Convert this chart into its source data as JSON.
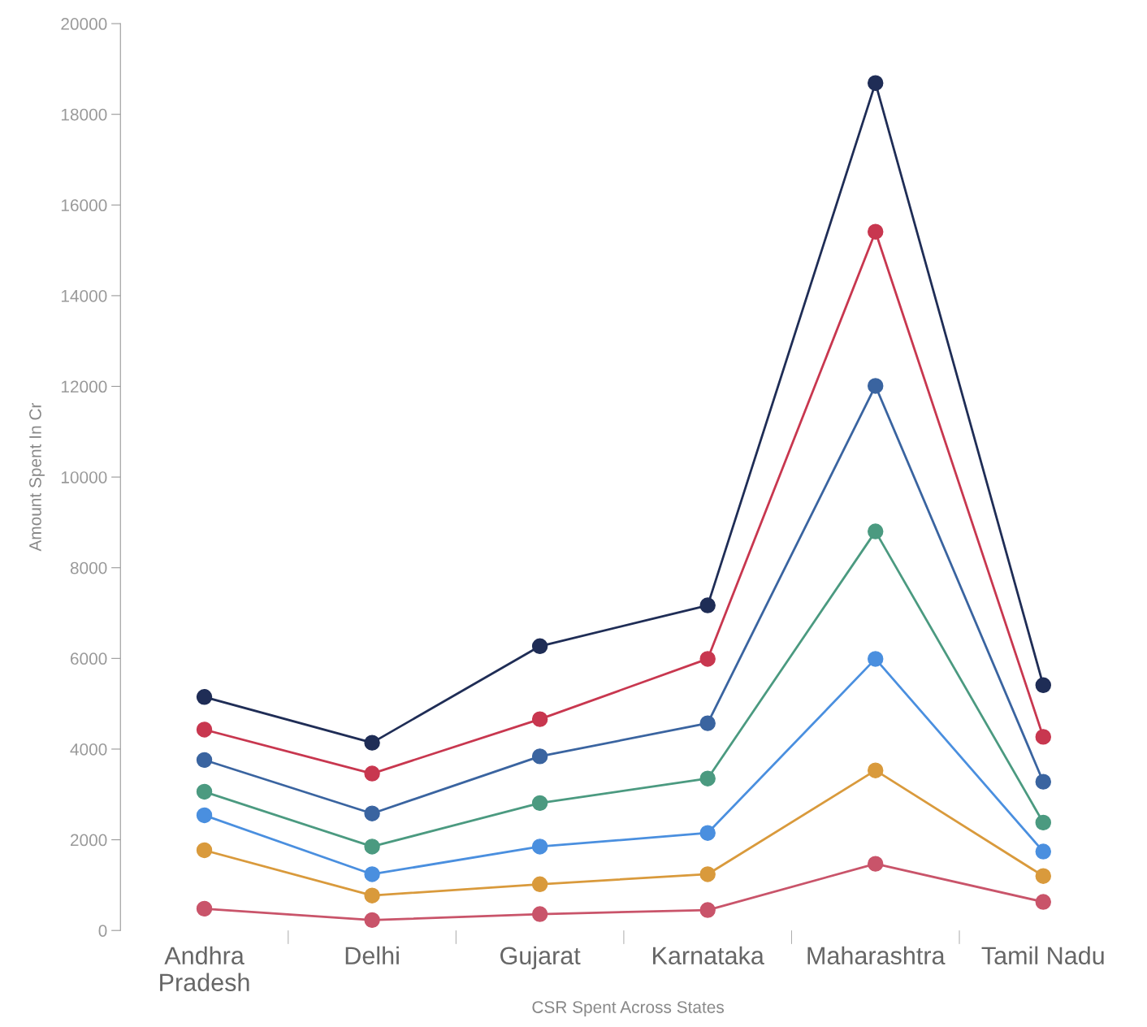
{
  "chart_data": {
    "type": "line",
    "xlabel": "CSR Spent Across States",
    "ylabel": "Amount Spent In Cr",
    "categories": [
      "Andhra\nPradesh",
      "Delhi",
      "Gujarat",
      "Karnataka",
      "Maharashtra",
      "Tamil Nadu"
    ],
    "series": [
      {
        "color": "#1f2d56",
        "values": [
          5150,
          4140,
          6270,
          7170,
          18690,
          5410
        ]
      },
      {
        "color": "#c8374f",
        "values": [
          4430,
          3460,
          4660,
          5990,
          15410,
          4270
        ]
      },
      {
        "color": "#3a64a0",
        "values": [
          3760,
          2580,
          3840,
          4570,
          12010,
          3280
        ]
      },
      {
        "color": "#4b9a80",
        "values": [
          3060,
          1850,
          2810,
          3350,
          8800,
          2380
        ]
      },
      {
        "color": "#4a8fdf",
        "values": [
          2540,
          1240,
          1850,
          2150,
          5990,
          1740
        ]
      },
      {
        "color": "#d99a3c",
        "values": [
          1770,
          770,
          1020,
          1240,
          3530,
          1200
        ]
      },
      {
        "color": "#c9546a",
        "values": [
          480,
          230,
          360,
          450,
          1470,
          630
        ]
      }
    ],
    "ylim": [
      0,
      20000
    ],
    "yticks": [
      0,
      2000,
      4000,
      6000,
      8000,
      10000,
      12000,
      14000,
      16000,
      18000,
      20000
    ],
    "grid": false,
    "legend": false,
    "marker": "circle",
    "line_style": "solid"
  }
}
